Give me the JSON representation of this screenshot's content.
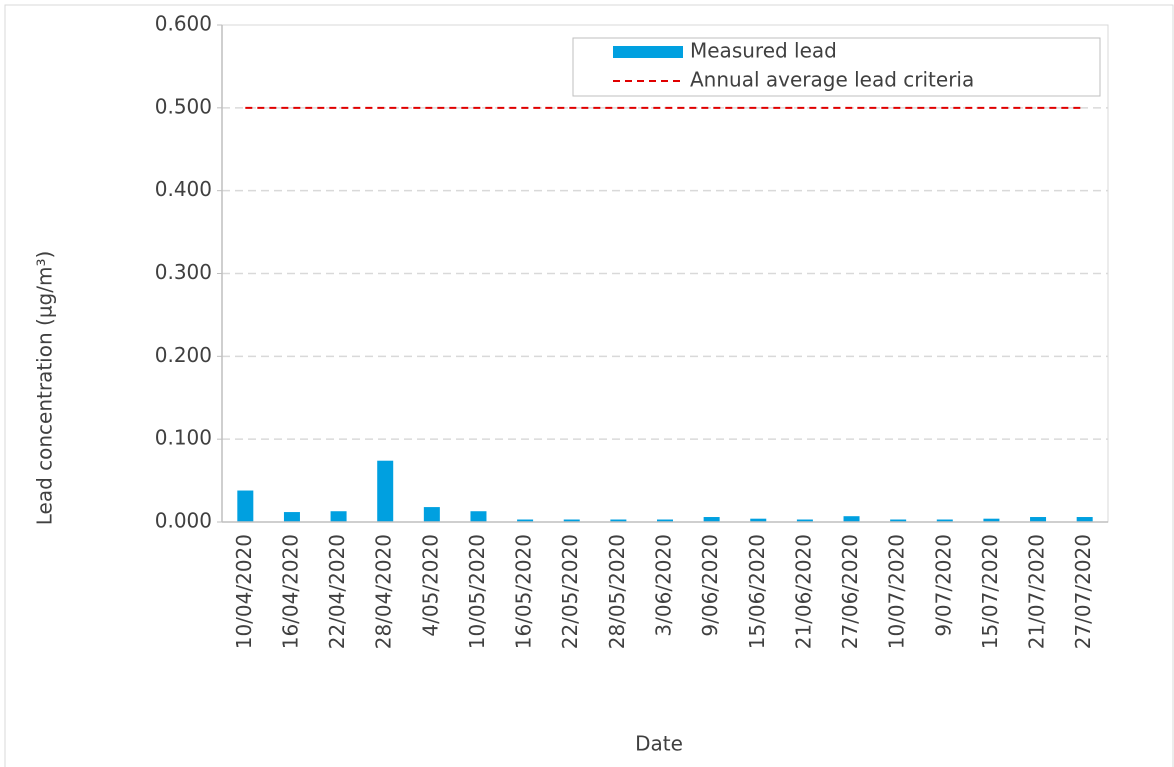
{
  "chart_data": {
    "type": "bar",
    "y_label": "Lead concentration (µg/m³)",
    "x_label": "Date",
    "categories": [
      "10/04/2020",
      "16/04/2020",
      "22/04/2020",
      "28/04/2020",
      "4/05/2020",
      "10/05/2020",
      "16/05/2020",
      "22/05/2020",
      "28/05/2020",
      "3/06/2020",
      "9/06/2020",
      "15/06/2020",
      "21/06/2020",
      "27/06/2020",
      "10/07/2020",
      "9/07/2020",
      "15/07/2020",
      "21/07/2020",
      "27/07/2020"
    ],
    "series": [
      {
        "name": "Measured lead",
        "type": "bar",
        "color": "#00a0e0",
        "values": [
          0.038,
          0.012,
          0.013,
          0.074,
          0.018,
          0.013,
          0.003,
          0.003,
          0.003,
          0.003,
          0.006,
          0.004,
          0.003,
          0.007,
          0.003,
          0.003,
          0.004,
          0.006,
          0.006
        ]
      },
      {
        "name": "Annual average lead criteria",
        "type": "line",
        "color": "#e00000",
        "dashed": true,
        "values": [
          0.5,
          0.5,
          0.5,
          0.5,
          0.5,
          0.5,
          0.5,
          0.5,
          0.5,
          0.5,
          0.5,
          0.5,
          0.5,
          0.5,
          0.5,
          0.5,
          0.5,
          0.5,
          0.5
        ]
      }
    ],
    "ylim": [
      0,
      0.6
    ],
    "yticks": [
      {
        "value": 0,
        "label": "0.000"
      },
      {
        "value": 0.1,
        "label": "0.100"
      },
      {
        "value": 0.2,
        "label": "0.200"
      },
      {
        "value": 0.3,
        "label": "0.300"
      },
      {
        "value": 0.4,
        "label": "0.400"
      },
      {
        "value": 0.5,
        "label": "0.500"
      },
      {
        "value": 0.6,
        "label": "0.600"
      }
    ],
    "grid": true,
    "legend": "top-right"
  }
}
